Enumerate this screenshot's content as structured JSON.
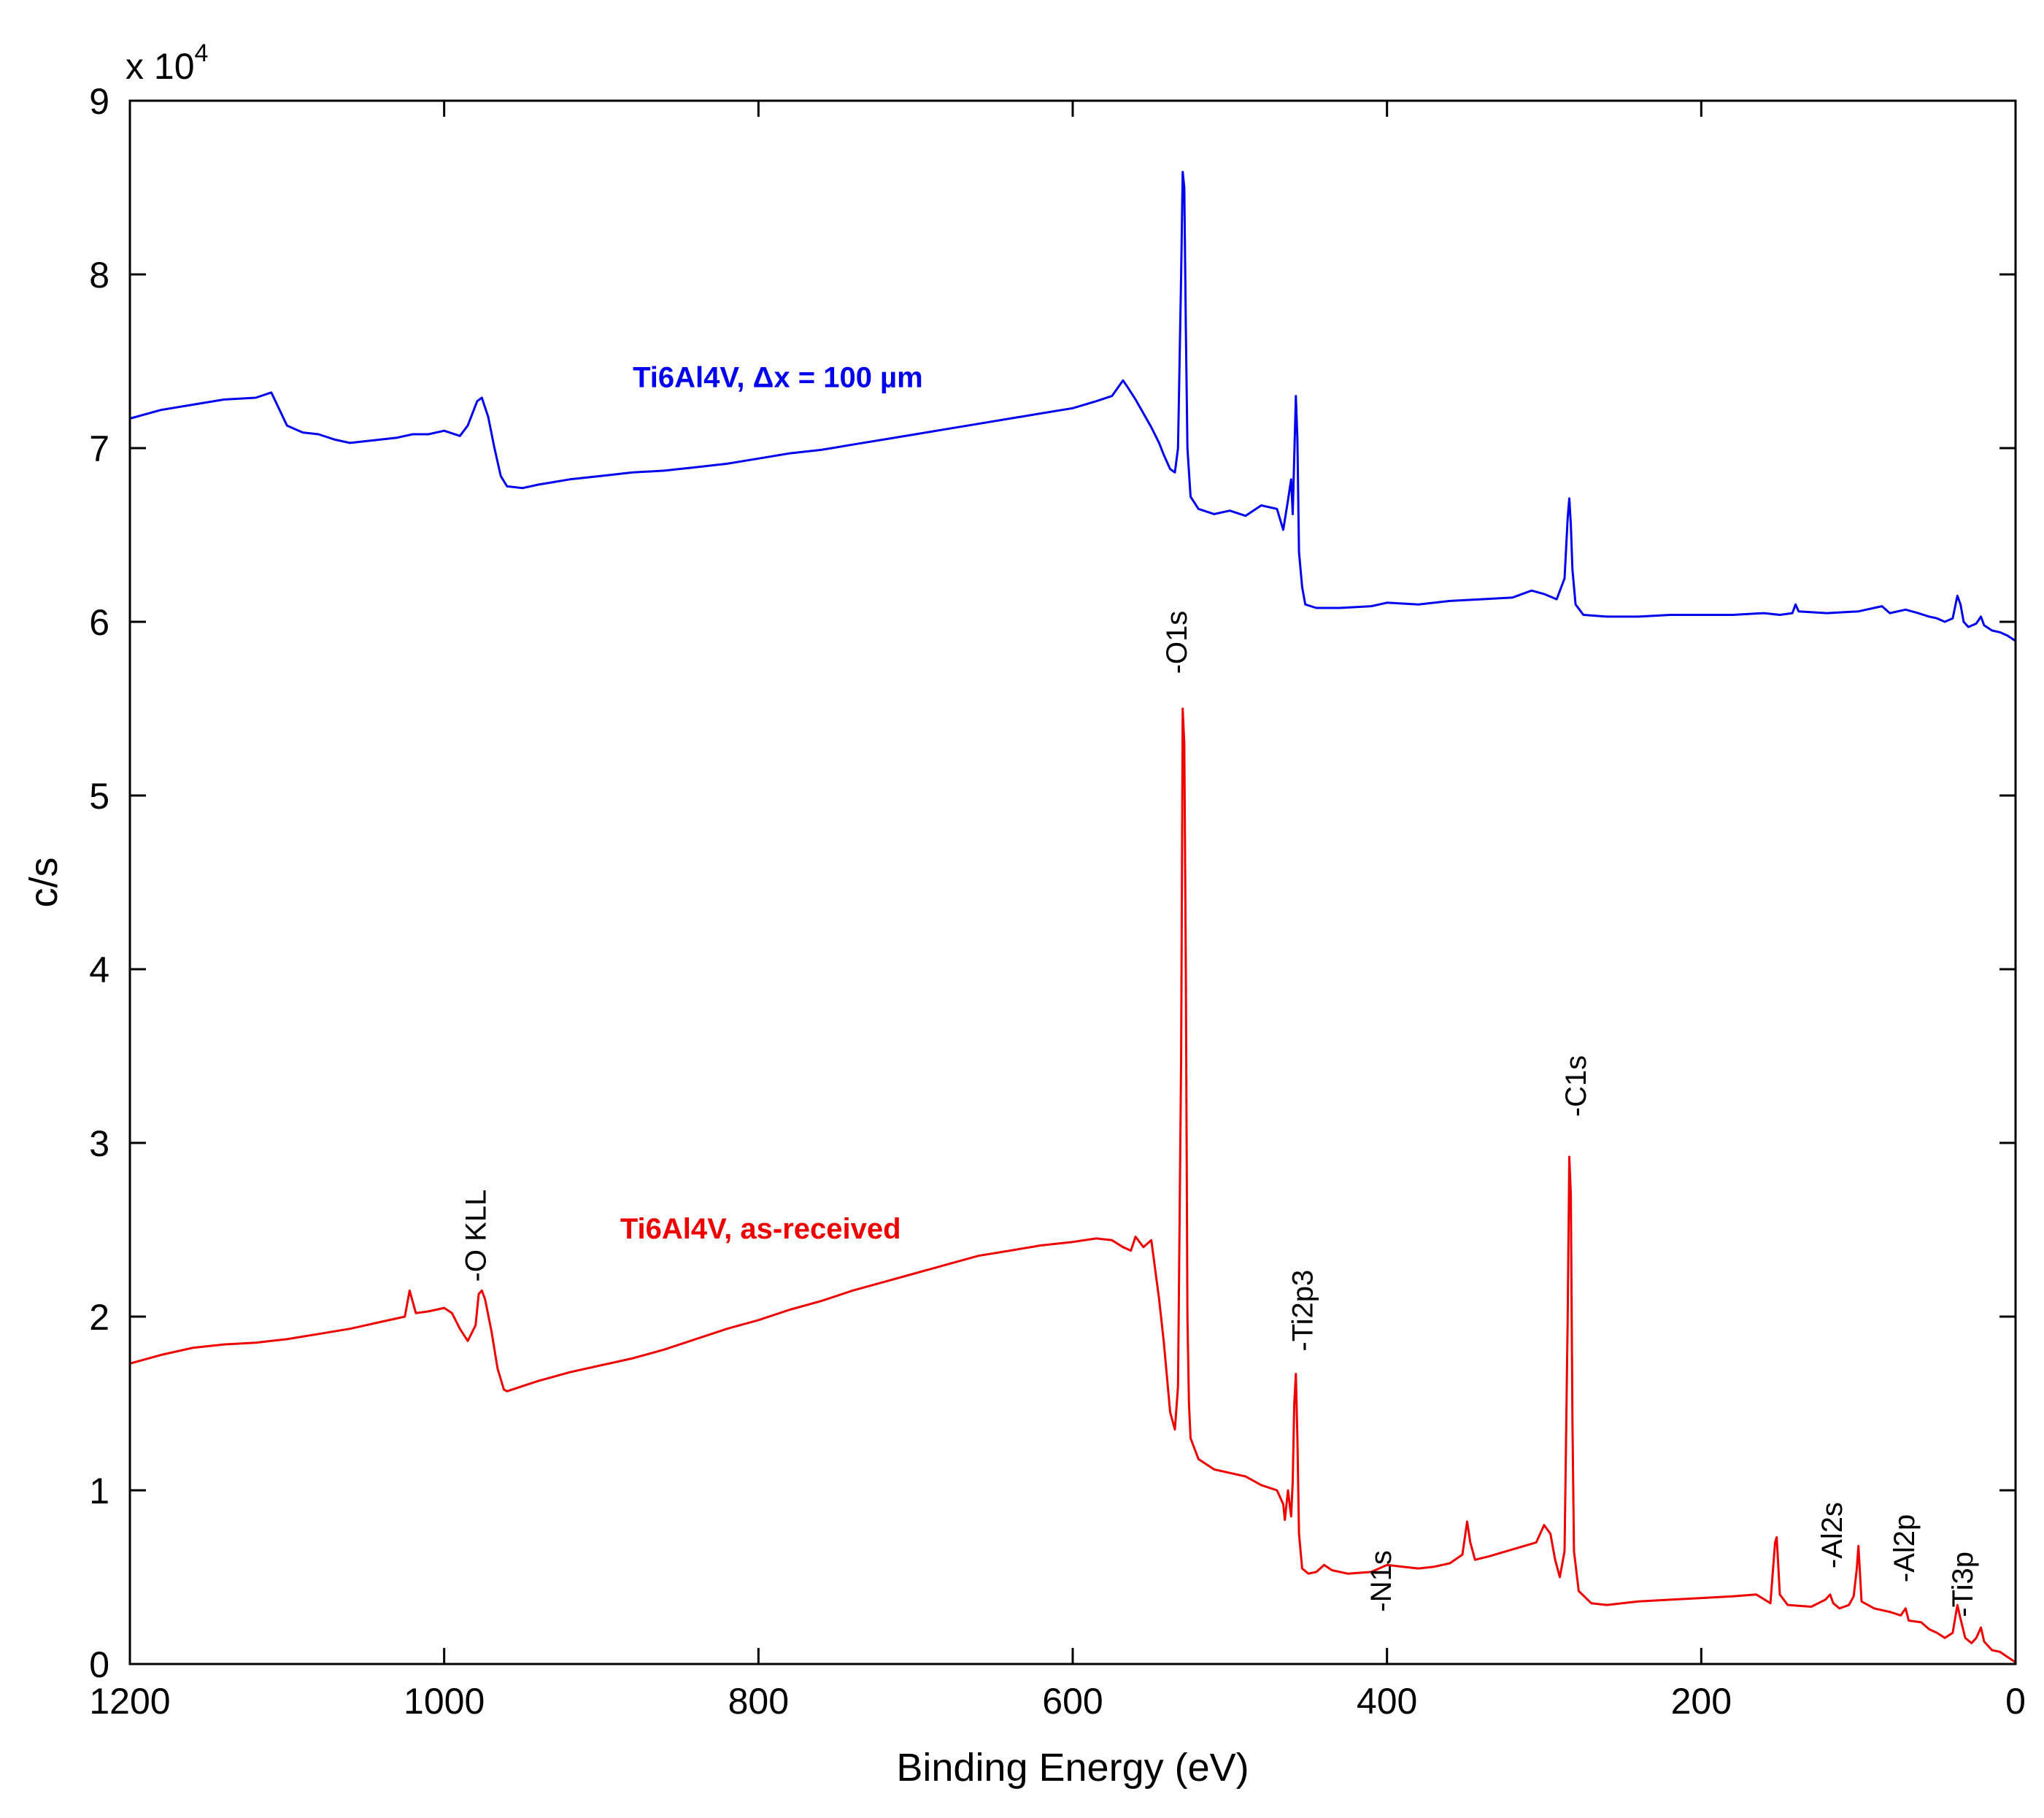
{
  "chart_data": {
    "type": "line",
    "title": "",
    "xlabel": "Binding Energy (eV)",
    "ylabel": "c/s",
    "y_multiplier": "x 10",
    "y_multiplier_exp": "4",
    "xlim": [
      1200,
      0
    ],
    "ylim": [
      0,
      90000
    ],
    "x_reversed": true,
    "grid": false,
    "xticks": [
      1200,
      1000,
      800,
      600,
      400,
      200,
      0
    ],
    "xtick_labels": [
      "1200",
      "1000",
      "800",
      "600",
      "400",
      "200",
      "0"
    ],
    "yticks": [
      0,
      10000,
      20000,
      30000,
      40000,
      50000,
      60000,
      70000,
      80000,
      90000
    ],
    "ytick_labels": [
      "0",
      "1",
      "2",
      "3",
      "4",
      "5",
      "6",
      "7",
      "8",
      "9"
    ],
    "series": [
      {
        "name": "Ti6Al4V, Δx = 100 µm",
        "color": "#0000ee",
        "label_anchor": [
          880,
          73500
        ],
        "points": [
          [
            1200,
            71700
          ],
          [
            1180,
            72200
          ],
          [
            1160,
            72500
          ],
          [
            1140,
            72800
          ],
          [
            1120,
            72900
          ],
          [
            1110,
            73200
          ],
          [
            1100,
            71300
          ],
          [
            1090,
            70900
          ],
          [
            1080,
            70800
          ],
          [
            1070,
            70500
          ],
          [
            1060,
            70300
          ],
          [
            1050,
            70400
          ],
          [
            1040,
            70500
          ],
          [
            1030,
            70600
          ],
          [
            1020,
            70800
          ],
          [
            1010,
            70800
          ],
          [
            1000,
            71000
          ],
          [
            990,
            70700
          ],
          [
            985,
            71300
          ],
          [
            979,
            72700
          ],
          [
            976,
            72900
          ],
          [
            972,
            71800
          ],
          [
            968,
            70000
          ],
          [
            964,
            68400
          ],
          [
            960,
            67800
          ],
          [
            950,
            67700
          ],
          [
            940,
            67900
          ],
          [
            920,
            68200
          ],
          [
            900,
            68400
          ],
          [
            880,
            68600
          ],
          [
            860,
            68700
          ],
          [
            840,
            68900
          ],
          [
            820,
            69100
          ],
          [
            800,
            69400
          ],
          [
            780,
            69700
          ],
          [
            760,
            69900
          ],
          [
            740,
            70200
          ],
          [
            720,
            70500
          ],
          [
            700,
            70800
          ],
          [
            680,
            71100
          ],
          [
            660,
            71400
          ],
          [
            640,
            71700
          ],
          [
            620,
            72000
          ],
          [
            600,
            72300
          ],
          [
            585,
            72700
          ],
          [
            575,
            73000
          ],
          [
            568,
            73900
          ],
          [
            565,
            73500
          ],
          [
            560,
            72800
          ],
          [
            555,
            72000
          ],
          [
            550,
            71200
          ],
          [
            545,
            70300
          ],
          [
            542,
            69600
          ],
          [
            538,
            68800
          ],
          [
            535,
            68600
          ],
          [
            533,
            70000
          ],
          [
            531,
            80000
          ],
          [
            530,
            85900
          ],
          [
            529,
            85000
          ],
          [
            528,
            77000
          ],
          [
            527,
            70000
          ],
          [
            525,
            67200
          ],
          [
            520,
            66500
          ],
          [
            510,
            66200
          ],
          [
            500,
            66400
          ],
          [
            490,
            66100
          ],
          [
            480,
            66700
          ],
          [
            470,
            66500
          ],
          [
            466,
            65300
          ],
          [
            463,
            67000
          ],
          [
            461,
            68200
          ],
          [
            460,
            66200
          ],
          [
            458,
            73000
          ],
          [
            457,
            70500
          ],
          [
            456,
            64000
          ],
          [
            454,
            62000
          ],
          [
            452,
            61000
          ],
          [
            445,
            60800
          ],
          [
            430,
            60800
          ],
          [
            410,
            60900
          ],
          [
            400,
            61100
          ],
          [
            380,
            61000
          ],
          [
            360,
            61200
          ],
          [
            340,
            61300
          ],
          [
            320,
            61400
          ],
          [
            308,
            61800
          ],
          [
            300,
            61600
          ],
          [
            292,
            61300
          ],
          [
            287,
            62500
          ],
          [
            285,
            66000
          ],
          [
            284,
            67100
          ],
          [
            283,
            65600
          ],
          [
            282,
            63000
          ],
          [
            280,
            61000
          ],
          [
            275,
            60400
          ],
          [
            260,
            60300
          ],
          [
            240,
            60300
          ],
          [
            220,
            60400
          ],
          [
            200,
            60400
          ],
          [
            180,
            60400
          ],
          [
            160,
            60500
          ],
          [
            150,
            60400
          ],
          [
            142,
            60500
          ],
          [
            140,
            61000
          ],
          [
            138,
            60600
          ],
          [
            120,
            60500
          ],
          [
            100,
            60600
          ],
          [
            85,
            60900
          ],
          [
            80,
            60500
          ],
          [
            70,
            60700
          ],
          [
            62,
            60500
          ],
          [
            55,
            60300
          ],
          [
            50,
            60200
          ],
          [
            45,
            60000
          ],
          [
            40,
            60200
          ],
          [
            37,
            61500
          ],
          [
            35,
            61000
          ],
          [
            33,
            60000
          ],
          [
            30,
            59700
          ],
          [
            25,
            59900
          ],
          [
            22,
            60300
          ],
          [
            20,
            59800
          ],
          [
            15,
            59500
          ],
          [
            10,
            59400
          ],
          [
            5,
            59200
          ],
          [
            0,
            58900
          ]
        ]
      },
      {
        "name": "Ti6Al4V, as-received",
        "color": "#ee0000",
        "label_anchor": [
          888,
          24500
        ],
        "points": [
          [
            1200,
            17300
          ],
          [
            1180,
            17800
          ],
          [
            1160,
            18200
          ],
          [
            1140,
            18400
          ],
          [
            1120,
            18500
          ],
          [
            1100,
            18700
          ],
          [
            1080,
            19000
          ],
          [
            1060,
            19300
          ],
          [
            1040,
            19700
          ],
          [
            1025,
            20000
          ],
          [
            1022,
            21500
          ],
          [
            1018,
            20200
          ],
          [
            1010,
            20300
          ],
          [
            1000,
            20500
          ],
          [
            995,
            20200
          ],
          [
            990,
            19300
          ],
          [
            985,
            18600
          ],
          [
            980,
            19500
          ],
          [
            978,
            21300
          ],
          [
            976,
            21500
          ],
          [
            974,
            21000
          ],
          [
            970,
            19200
          ],
          [
            966,
            17000
          ],
          [
            962,
            15800
          ],
          [
            960,
            15700
          ],
          [
            950,
            16000
          ],
          [
            940,
            16300
          ],
          [
            920,
            16800
          ],
          [
            900,
            17200
          ],
          [
            880,
            17600
          ],
          [
            860,
            18100
          ],
          [
            840,
            18700
          ],
          [
            820,
            19300
          ],
          [
            800,
            19800
          ],
          [
            780,
            20400
          ],
          [
            760,
            20900
          ],
          [
            740,
            21500
          ],
          [
            720,
            22000
          ],
          [
            700,
            22500
          ],
          [
            680,
            23000
          ],
          [
            660,
            23500
          ],
          [
            640,
            23800
          ],
          [
            620,
            24100
          ],
          [
            600,
            24300
          ],
          [
            585,
            24500
          ],
          [
            575,
            24400
          ],
          [
            568,
            24000
          ],
          [
            563,
            23800
          ],
          [
            560,
            24600
          ],
          [
            555,
            24000
          ],
          [
            550,
            24400
          ],
          [
            545,
            21000
          ],
          [
            542,
            18500
          ],
          [
            540,
            16500
          ],
          [
            538,
            14500
          ],
          [
            535,
            13500
          ],
          [
            533,
            16000
          ],
          [
            531,
            35000
          ],
          [
            530,
            55000
          ],
          [
            529,
            53000
          ],
          [
            528,
            40000
          ],
          [
            527,
            20000
          ],
          [
            526,
            15000
          ],
          [
            525,
            13000
          ],
          [
            520,
            11800
          ],
          [
            510,
            11200
          ],
          [
            500,
            11000
          ],
          [
            490,
            10800
          ],
          [
            480,
            10300
          ],
          [
            470,
            10000
          ],
          [
            466,
            9200
          ],
          [
            465,
            8300
          ],
          [
            463,
            10000
          ],
          [
            461,
            8500
          ],
          [
            460,
            10500
          ],
          [
            459,
            15000
          ],
          [
            458,
            16700
          ],
          [
            457,
            13000
          ],
          [
            456,
            7500
          ],
          [
            454,
            5500
          ],
          [
            450,
            5200
          ],
          [
            445,
            5300
          ],
          [
            440,
            5700
          ],
          [
            435,
            5400
          ],
          [
            425,
            5200
          ],
          [
            410,
            5300
          ],
          [
            400,
            5700
          ],
          [
            390,
            5600
          ],
          [
            380,
            5500
          ],
          [
            370,
            5600
          ],
          [
            360,
            5800
          ],
          [
            352,
            6300
          ],
          [
            349,
            8200
          ],
          [
            347,
            7000
          ],
          [
            344,
            6000
          ],
          [
            335,
            6200
          ],
          [
            320,
            6600
          ],
          [
            305,
            7000
          ],
          [
            300,
            8000
          ],
          [
            296,
            7500
          ],
          [
            293,
            6000
          ],
          [
            290,
            5000
          ],
          [
            287,
            6500
          ],
          [
            285,
            20000
          ],
          [
            284,
            29200
          ],
          [
            283,
            27000
          ],
          [
            282,
            14000
          ],
          [
            281,
            6500
          ],
          [
            278,
            4200
          ],
          [
            270,
            3500
          ],
          [
            260,
            3400
          ],
          [
            240,
            3600
          ],
          [
            220,
            3700
          ],
          [
            200,
            3800
          ],
          [
            180,
            3900
          ],
          [
            165,
            4000
          ],
          [
            156,
            3500
          ],
          [
            153,
            7000
          ],
          [
            152,
            7300
          ],
          [
            150,
            4000
          ],
          [
            145,
            3400
          ],
          [
            130,
            3300
          ],
          [
            121,
            3700
          ],
          [
            118,
            4000
          ],
          [
            116,
            3500
          ],
          [
            112,
            3200
          ],
          [
            106,
            3400
          ],
          [
            103,
            3900
          ],
          [
            101,
            5500
          ],
          [
            100,
            6800
          ],
          [
            98,
            3600
          ],
          [
            90,
            3200
          ],
          [
            80,
            3000
          ],
          [
            73,
            2800
          ],
          [
            70,
            3200
          ],
          [
            68,
            2500
          ],
          [
            60,
            2400
          ],
          [
            55,
            2000
          ],
          [
            50,
            1800
          ],
          [
            45,
            1500
          ],
          [
            40,
            1800
          ],
          [
            37,
            3400
          ],
          [
            35,
            2600
          ],
          [
            32,
            1500
          ],
          [
            28,
            1200
          ],
          [
            25,
            1500
          ],
          [
            22,
            2100
          ],
          [
            20,
            1300
          ],
          [
            15,
            800
          ],
          [
            10,
            700
          ],
          [
            5,
            400
          ],
          [
            0,
            100
          ]
        ]
      }
    ],
    "annotations": [
      {
        "text": "-O1s",
        "x": 534,
        "y": 57000
      },
      {
        "text": "-O KLL",
        "x": 980,
        "y": 22000
      },
      {
        "text": "-Ti2p3",
        "x": 454,
        "y": 18000
      },
      {
        "text": "-C1s",
        "x": 280,
        "y": 31500
      },
      {
        "text": "-N1s",
        "x": 404,
        "y": 3000
      },
      {
        "text": "-Al2s",
        "x": 117,
        "y": 5500
      },
      {
        "text": "-Al2p",
        "x": 71,
        "y": 4700
      },
      {
        "text": "-Ti3p",
        "x": 34,
        "y": 2700
      }
    ]
  }
}
